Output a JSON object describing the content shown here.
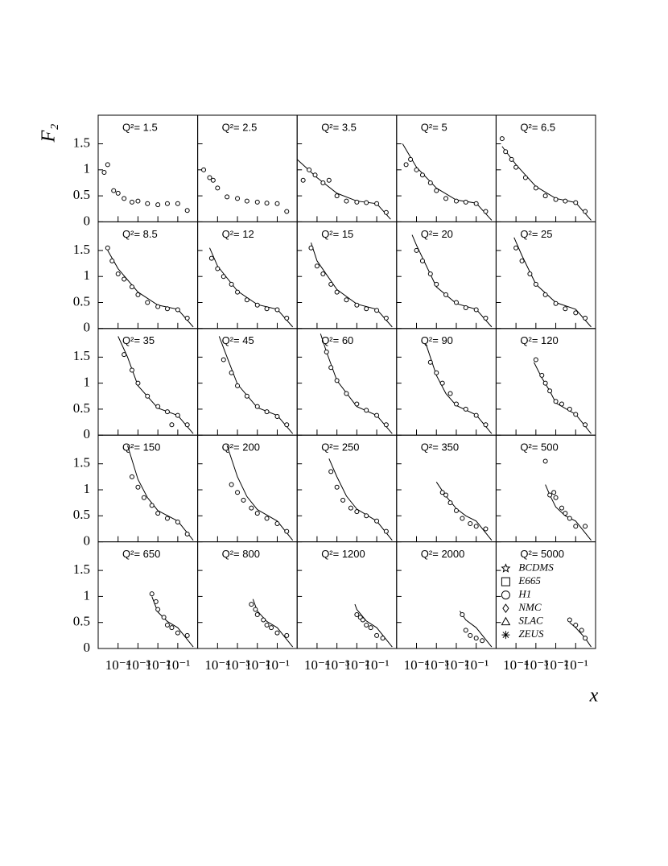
{
  "chart_data": {
    "type": "scatter",
    "x_label": "x",
    "y_label": "F₂",
    "xlim": [
      1e-05,
      1
    ],
    "xlog": true,
    "ylim": [
      0,
      2.05
    ],
    "xticks": [
      {
        "value": 0.0001,
        "label": "10⁻⁴"
      },
      {
        "value": 0.001,
        "label": "10⁻³"
      },
      {
        "value": 0.01,
        "label": "10⁻²"
      },
      {
        "value": 0.1,
        "label": "10⁻¹"
      }
    ],
    "yticks": [
      0,
      0.5,
      1,
      1.5
    ],
    "legend": [
      "BCDMS",
      "E665",
      "H1",
      "NMC",
      "SLAC",
      "ZEUS"
    ],
    "legend_markers": [
      "star",
      "square",
      "circle",
      "diamond",
      "triangle",
      "asterisk"
    ],
    "panels": [
      {
        "title": "Q²= 1.5",
        "x": [
          2e-05,
          3e-05,
          6e-05,
          0.0001,
          0.0002,
          0.0005,
          0.001,
          0.003,
          0.01,
          0.03,
          0.1,
          0.3
        ],
        "values": [
          0.95,
          1.1,
          0.6,
          0.55,
          0.45,
          0.38,
          0.4,
          0.35,
          0.33,
          0.35,
          0.35,
          0.22
        ]
      },
      {
        "title": "Q²= 2.5",
        "x": [
          2e-05,
          4e-05,
          6e-05,
          0.0001,
          0.0003,
          0.001,
          0.003,
          0.01,
          0.03,
          0.1,
          0.3
        ],
        "values": [
          1.0,
          0.85,
          0.8,
          0.65,
          0.48,
          0.45,
          0.4,
          0.38,
          0.36,
          0.35,
          0.2
        ]
      },
      {
        "title": "Q²= 3.5",
        "x": [
          2e-05,
          4e-05,
          8e-05,
          0.0002,
          0.0004,
          0.001,
          0.003,
          0.01,
          0.03,
          0.1,
          0.3
        ],
        "values": [
          0.8,
          1.0,
          0.9,
          0.75,
          0.8,
          0.5,
          0.4,
          0.38,
          0.37,
          0.35,
          0.18
        ],
        "fit_x": [
          1e-05,
          0.0001,
          0.001,
          0.01,
          0.1,
          0.5
        ],
        "fit_values": [
          1.2,
          0.85,
          0.55,
          0.4,
          0.35,
          0.05
        ]
      },
      {
        "title": "Q²= 5",
        "x": [
          3e-05,
          5e-05,
          0.0001,
          0.0002,
          0.0005,
          0.001,
          0.003,
          0.01,
          0.03,
          0.1,
          0.3
        ],
        "values": [
          1.1,
          1.2,
          1.0,
          0.9,
          0.75,
          0.6,
          0.45,
          0.4,
          0.38,
          0.35,
          0.2
        ],
        "fit_x": [
          2e-05,
          0.0001,
          0.001,
          0.01,
          0.1,
          0.6
        ],
        "fit_values": [
          1.5,
          1.05,
          0.65,
          0.42,
          0.36,
          0.03
        ]
      },
      {
        "title": "Q²= 6.5",
        "x": [
          2e-05,
          3e-05,
          6e-05,
          0.0001,
          0.0003,
          0.001,
          0.003,
          0.01,
          0.03,
          0.1,
          0.3
        ],
        "values": [
          1.6,
          1.35,
          1.2,
          1.05,
          0.85,
          0.65,
          0.5,
          0.43,
          0.4,
          0.37,
          0.2
        ],
        "fit_x": [
          2e-05,
          0.0001,
          0.001,
          0.01,
          0.1,
          0.6
        ],
        "fit_values": [
          1.45,
          1.1,
          0.68,
          0.45,
          0.37,
          0.03
        ]
      },
      {
        "title": "Q²= 8.5",
        "x": [
          3e-05,
          5e-05,
          0.0001,
          0.0002,
          0.0005,
          0.001,
          0.003,
          0.01,
          0.03,
          0.1,
          0.3
        ],
        "values": [
          1.55,
          1.3,
          1.05,
          0.95,
          0.8,
          0.65,
          0.5,
          0.42,
          0.38,
          0.36,
          0.2
        ],
        "fit_x": [
          3e-05,
          0.0001,
          0.001,
          0.01,
          0.1,
          0.6
        ],
        "fit_values": [
          1.5,
          1.15,
          0.7,
          0.45,
          0.37,
          0.03
        ]
      },
      {
        "title": "Q²= 12",
        "x": [
          5e-05,
          0.0001,
          0.0002,
          0.0005,
          0.001,
          0.003,
          0.01,
          0.03,
          0.1,
          0.3
        ],
        "values": [
          1.35,
          1.15,
          1.0,
          0.85,
          0.7,
          0.55,
          0.45,
          0.38,
          0.36,
          0.2
        ],
        "fit_x": [
          4e-05,
          0.0001,
          0.001,
          0.01,
          0.1,
          0.6
        ],
        "fit_values": [
          1.55,
          1.2,
          0.72,
          0.46,
          0.37,
          0.03
        ]
      },
      {
        "title": "Q²= 15",
        "x": [
          5e-05,
          0.0001,
          0.0002,
          0.0005,
          0.001,
          0.003,
          0.01,
          0.03,
          0.1,
          0.3
        ],
        "values": [
          1.55,
          1.2,
          1.05,
          0.85,
          0.7,
          0.55,
          0.45,
          0.38,
          0.35,
          0.2
        ],
        "fit_x": [
          5e-05,
          0.0001,
          0.001,
          0.01,
          0.1,
          0.6
        ],
        "fit_values": [
          1.65,
          1.3,
          0.75,
          0.47,
          0.37,
          0.03
        ]
      },
      {
        "title": "Q²= 20",
        "x": [
          0.0001,
          0.0002,
          0.0005,
          0.001,
          0.003,
          0.01,
          0.03,
          0.1,
          0.3
        ],
        "values": [
          1.5,
          1.3,
          1.05,
          0.85,
          0.65,
          0.5,
          0.4,
          0.36,
          0.2
        ],
        "fit_x": [
          6e-05,
          0.0001,
          0.001,
          0.01,
          0.1,
          0.6
        ],
        "fit_values": [
          1.8,
          1.6,
          0.8,
          0.48,
          0.37,
          0.03
        ]
      },
      {
        "title": "Q²= 25",
        "x": [
          0.0001,
          0.0002,
          0.0005,
          0.001,
          0.003,
          0.01,
          0.03,
          0.1,
          0.3
        ],
        "values": [
          1.55,
          1.3,
          1.05,
          0.85,
          0.65,
          0.48,
          0.38,
          0.3,
          0.2
        ],
        "fit_x": [
          8e-05,
          0.0002,
          0.001,
          0.01,
          0.1,
          0.6
        ],
        "fit_values": [
          1.75,
          1.4,
          0.85,
          0.5,
          0.37,
          0.03
        ]
      },
      {
        "title": "Q²= 35",
        "x": [
          0.0002,
          0.0005,
          0.001,
          0.003,
          0.01,
          0.03,
          0.05,
          0.1,
          0.3
        ],
        "values": [
          1.55,
          1.25,
          1.0,
          0.75,
          0.55,
          0.45,
          0.2,
          0.38,
          0.2
        ],
        "fit_x": [
          0.0001,
          0.0003,
          0.001,
          0.01,
          0.1,
          0.6
        ],
        "fit_values": [
          1.9,
          1.5,
          0.95,
          0.52,
          0.38,
          0.03
        ]
      },
      {
        "title": "Q²= 45",
        "x": [
          0.0002,
          0.0005,
          0.001,
          0.003,
          0.01,
          0.03,
          0.1,
          0.3
        ],
        "values": [
          1.45,
          1.2,
          0.95,
          0.75,
          0.55,
          0.45,
          0.36,
          0.2
        ],
        "fit_x": [
          0.00012,
          0.0003,
          0.001,
          0.01,
          0.1,
          0.6
        ],
        "fit_values": [
          1.9,
          1.5,
          0.98,
          0.53,
          0.38,
          0.03
        ]
      },
      {
        "title": "Q²= 60",
        "x": [
          0.0003,
          0.0005,
          0.001,
          0.003,
          0.01,
          0.03,
          0.1,
          0.3
        ],
        "values": [
          1.6,
          1.3,
          1.05,
          0.8,
          0.6,
          0.48,
          0.38,
          0.2
        ],
        "fit_x": [
          0.00015,
          0.0003,
          0.001,
          0.01,
          0.1,
          0.6
        ],
        "fit_values": [
          1.95,
          1.6,
          1.05,
          0.55,
          0.38,
          0.03
        ]
      },
      {
        "title": "Q²= 90",
        "x": [
          0.0005,
          0.001,
          0.002,
          0.005,
          0.01,
          0.03,
          0.1,
          0.3
        ],
        "values": [
          1.4,
          1.2,
          1.0,
          0.8,
          0.6,
          0.5,
          0.38,
          0.2
        ],
        "fit_x": [
          0.0003,
          0.001,
          0.003,
          0.01,
          0.1,
          0.6
        ],
        "fit_values": [
          1.75,
          1.15,
          0.8,
          0.57,
          0.39,
          0.03
        ]
      },
      {
        "title": "Q²= 120",
        "x": [
          0.001,
          0.002,
          0.003,
          0.005,
          0.01,
          0.02,
          0.05,
          0.1,
          0.3
        ],
        "values": [
          1.45,
          1.15,
          1.0,
          0.85,
          0.65,
          0.6,
          0.5,
          0.4,
          0.2
        ],
        "fit_x": [
          0.0008,
          0.002,
          0.005,
          0.01,
          0.1,
          0.6
        ],
        "fit_values": [
          1.4,
          1.1,
          0.85,
          0.62,
          0.4,
          0.03
        ]
      },
      {
        "title": "Q²= 150",
        "x": [
          0.0005,
          0.001,
          0.002,
          0.005,
          0.01,
          0.03,
          0.1,
          0.3
        ],
        "values": [
          1.25,
          1.05,
          0.85,
          0.7,
          0.55,
          0.45,
          0.38,
          0.15
        ],
        "fit_x": [
          0.0003,
          0.001,
          0.003,
          0.01,
          0.1,
          0.6
        ],
        "fit_values": [
          1.85,
          1.2,
          0.85,
          0.6,
          0.4,
          0.03
        ]
      },
      {
        "title": "Q²= 200",
        "x": [
          0.0005,
          0.001,
          0.002,
          0.005,
          0.01,
          0.03,
          0.1,
          0.3
        ],
        "values": [
          1.1,
          0.95,
          0.8,
          0.65,
          0.55,
          0.45,
          0.35,
          0.2
        ],
        "fit_x": [
          0.0003,
          0.001,
          0.003,
          0.01,
          0.1,
          0.6
        ],
        "fit_values": [
          1.85,
          1.25,
          0.87,
          0.62,
          0.4,
          0.03
        ]
      },
      {
        "title": "Q²= 250",
        "x": [
          0.0005,
          0.001,
          0.002,
          0.005,
          0.01,
          0.03,
          0.1,
          0.3
        ],
        "values": [
          1.35,
          1.05,
          0.8,
          0.65,
          0.58,
          0.5,
          0.4,
          0.2
        ],
        "fit_x": [
          0.0004,
          0.001,
          0.003,
          0.01,
          0.1,
          0.6
        ],
        "fit_values": [
          1.6,
          1.25,
          0.88,
          0.63,
          0.4,
          0.03
        ]
      },
      {
        "title": "Q²= 350",
        "x": [
          0.002,
          0.003,
          0.005,
          0.01,
          0.02,
          0.05,
          0.1,
          0.3
        ],
        "values": [
          0.95,
          0.9,
          0.75,
          0.6,
          0.45,
          0.35,
          0.3,
          0.25
        ],
        "fit_x": [
          0.001,
          0.003,
          0.01,
          0.03,
          0.1,
          0.6
        ],
        "fit_values": [
          1.15,
          0.88,
          0.64,
          0.5,
          0.4,
          0.03
        ]
      },
      {
        "title": "Q²= 500",
        "x": [
          0.003,
          0.005,
          0.008,
          0.01,
          0.02,
          0.03,
          0.05,
          0.1,
          0.3
        ],
        "values": [
          1.55,
          0.9,
          0.95,
          0.85,
          0.65,
          0.55,
          0.45,
          0.3,
          0.3
        ],
        "fit_x": [
          0.003,
          0.005,
          0.01,
          0.03,
          0.1,
          0.6
        ],
        "fit_values": [
          1.1,
          0.9,
          0.67,
          0.5,
          0.4,
          0.03
        ]
      },
      {
        "title": "Q²= 650",
        "x": [
          0.005,
          0.008,
          0.01,
          0.02,
          0.03,
          0.05,
          0.1,
          0.3
        ],
        "values": [
          1.05,
          0.9,
          0.75,
          0.6,
          0.45,
          0.4,
          0.3,
          0.25
        ],
        "fit_x": [
          0.005,
          0.01,
          0.03,
          0.1,
          0.6
        ],
        "fit_values": [
          1.0,
          0.7,
          0.52,
          0.4,
          0.03
        ]
      },
      {
        "title": "Q²= 800",
        "x": [
          0.005,
          0.008,
          0.01,
          0.02,
          0.03,
          0.05,
          0.1,
          0.3
        ],
        "values": [
          0.85,
          0.75,
          0.65,
          0.55,
          0.45,
          0.4,
          0.3,
          0.25
        ],
        "fit_x": [
          0.006,
          0.01,
          0.03,
          0.1,
          0.6
        ],
        "fit_values": [
          0.95,
          0.72,
          0.52,
          0.4,
          0.03
        ]
      },
      {
        "title": "Q²= 1200",
        "x": [
          0.01,
          0.015,
          0.02,
          0.03,
          0.05,
          0.1,
          0.2
        ],
        "values": [
          0.65,
          0.6,
          0.55,
          0.45,
          0.4,
          0.25,
          0.2
        ],
        "fit_x": [
          0.008,
          0.01,
          0.03,
          0.1,
          0.6
        ],
        "fit_values": [
          0.85,
          0.75,
          0.53,
          0.4,
          0.03
        ]
      },
      {
        "title": "Q²= 2000",
        "x": [
          0.02,
          0.03,
          0.05,
          0.1,
          0.2
        ],
        "values": [
          0.65,
          0.35,
          0.25,
          0.2,
          0.15
        ],
        "fit_x": [
          0.015,
          0.03,
          0.1,
          0.6
        ],
        "fit_values": [
          0.72,
          0.55,
          0.4,
          0.03
        ]
      },
      {
        "title": "Q²= 5000",
        "x": [
          0.05,
          0.1,
          0.2,
          0.3
        ],
        "values": [
          0.55,
          0.45,
          0.35,
          0.2
        ],
        "fit_x": [
          0.05,
          0.1,
          0.3,
          0.6
        ],
        "fit_values": [
          0.5,
          0.4,
          0.2,
          0.03
        ]
      }
    ]
  }
}
